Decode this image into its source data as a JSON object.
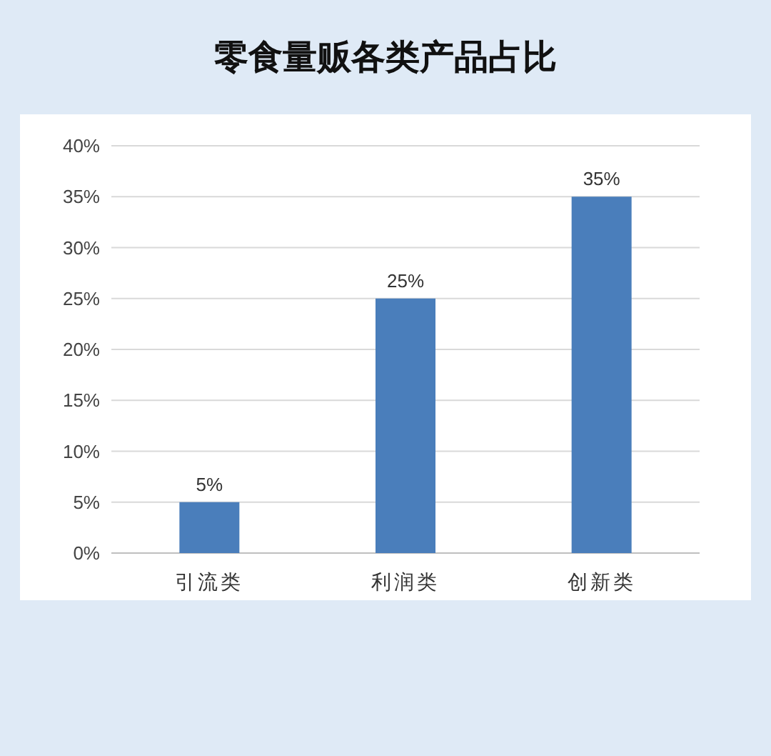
{
  "chart_data": {
    "type": "bar",
    "title": "零食量贩各类产品占比",
    "categories": [
      "引流类",
      "利润类",
      "创新类"
    ],
    "values": [
      5,
      25,
      35
    ],
    "value_labels": [
      "5%",
      "25%",
      "35%"
    ],
    "color": "#4a7ebb",
    "ylim": [
      0,
      40
    ],
    "yticks": [
      {
        "value": 0,
        "label": "0%"
      },
      {
        "value": 5,
        "label": "5%"
      },
      {
        "value": 10,
        "label": "10%"
      },
      {
        "value": 15,
        "label": "15%"
      },
      {
        "value": 20,
        "label": "20%"
      },
      {
        "value": 25,
        "label": "25%"
      },
      {
        "value": 30,
        "label": "30%"
      },
      {
        "value": 35,
        "label": "35%"
      },
      {
        "value": 40,
        "label": "40%"
      }
    ],
    "grid": "y"
  }
}
